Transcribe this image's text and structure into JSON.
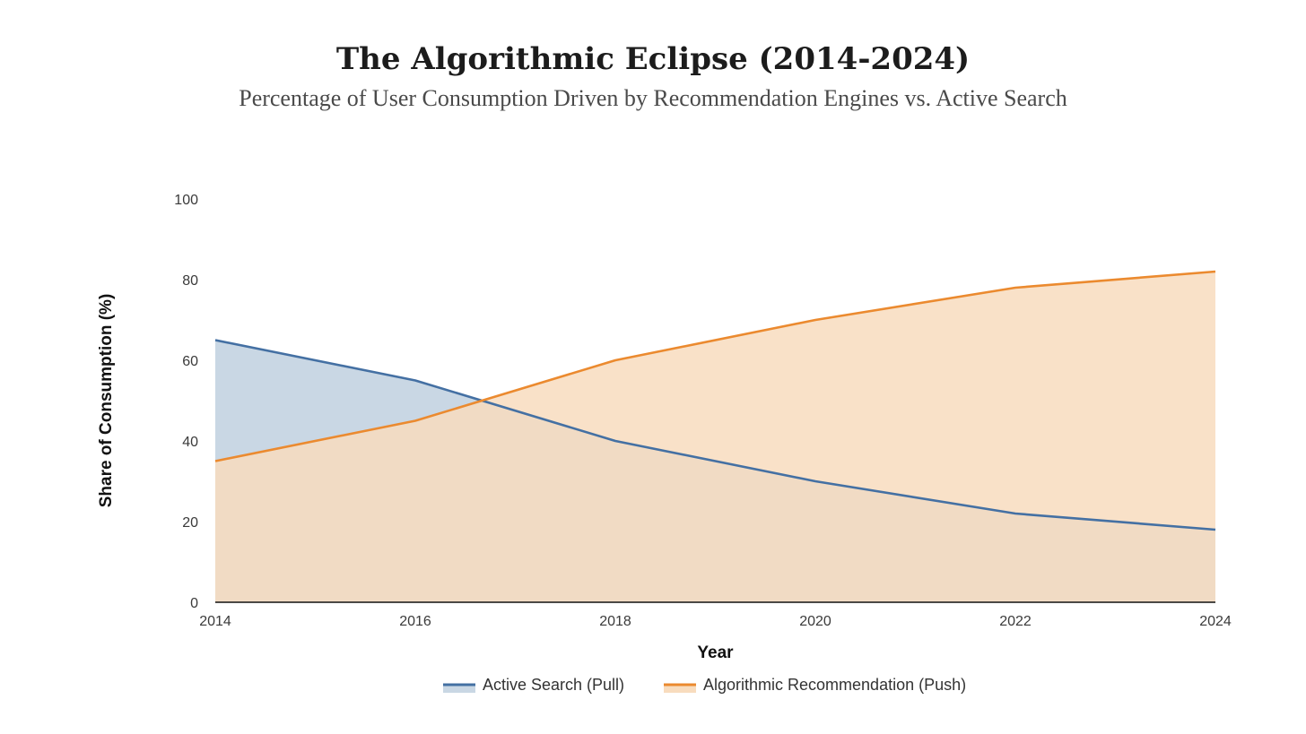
{
  "chart_data": {
    "type": "area",
    "title": "The Algorithmic Eclipse (2014-2024)",
    "subtitle": "Percentage of User Consumption Driven by Recommendation Engines vs. Active Search",
    "xlabel": "Year",
    "ylabel": "Share of Consumption (%)",
    "x": [
      2014,
      2016,
      2018,
      2020,
      2022,
      2024
    ],
    "xlim": [
      2014,
      2024
    ],
    "ylim": [
      0,
      100
    ],
    "yticks": [
      0,
      20,
      40,
      60,
      80,
      100
    ],
    "xticks": [
      "2014",
      "2016",
      "2018",
      "2020",
      "2022",
      "2024"
    ],
    "grid": false,
    "legend_position": "bottom",
    "series": [
      {
        "name": "Active Search (Pull)",
        "values": [
          65,
          55,
          40,
          30,
          22,
          18
        ],
        "line_color": "#4470a3",
        "fill_color": "#c9d7e4"
      },
      {
        "name": "Algorithmic Recommendation (Push)",
        "values": [
          35,
          45,
          60,
          70,
          78,
          82
        ],
        "line_color": "#eb8a2f",
        "fill_color": "#f8dcbe"
      }
    ]
  }
}
